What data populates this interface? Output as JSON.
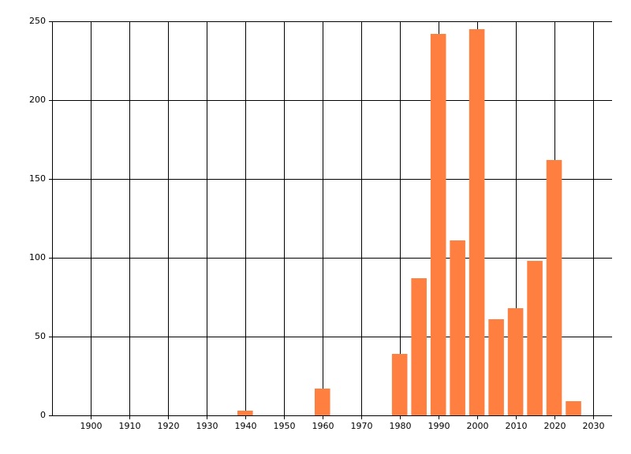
{
  "chart_data": {
    "type": "bar",
    "x": [
      1940,
      1960,
      1980,
      1985,
      1990,
      1995,
      2000,
      2005,
      2010,
      2015,
      2020,
      2025
    ],
    "values": [
      3,
      17,
      39,
      87,
      242,
      111,
      245,
      61,
      68,
      98,
      162,
      9
    ],
    "color": "#ff7f40",
    "xlim": [
      1890,
      2035
    ],
    "xticks": [
      1900,
      1910,
      1920,
      1930,
      1940,
      1950,
      1960,
      1970,
      1980,
      1990,
      2000,
      2010,
      2020,
      2030
    ],
    "ylim": [
      0,
      250
    ],
    "yticks": [
      0,
      50,
      100,
      150,
      200,
      250
    ],
    "grid": true
  }
}
